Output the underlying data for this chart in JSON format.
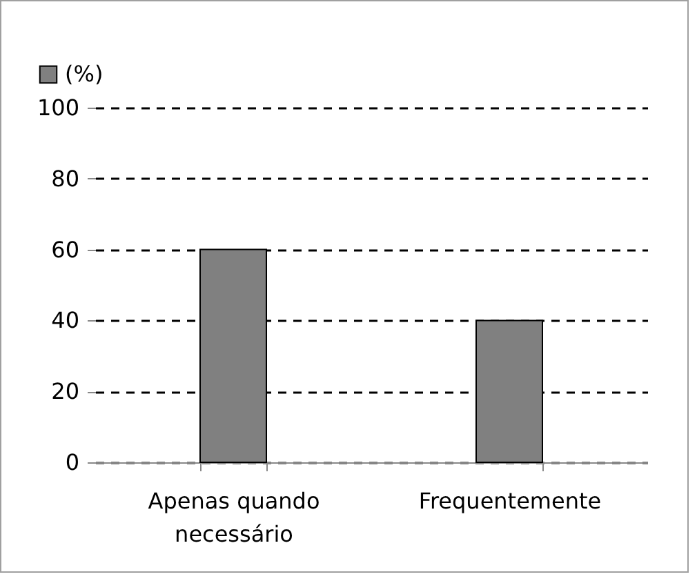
{
  "chart_data": {
    "type": "bar",
    "categories": [
      "Apenas quando necessário",
      "Frequentemente"
    ],
    "series": [
      {
        "name": "(%)",
        "color": "#808080",
        "values": [
          60,
          40
        ]
      }
    ],
    "ylim": [
      0,
      100
    ],
    "yticks": [
      0,
      20,
      40,
      60,
      80,
      100
    ],
    "grid": "y",
    "legend": "top left"
  }
}
